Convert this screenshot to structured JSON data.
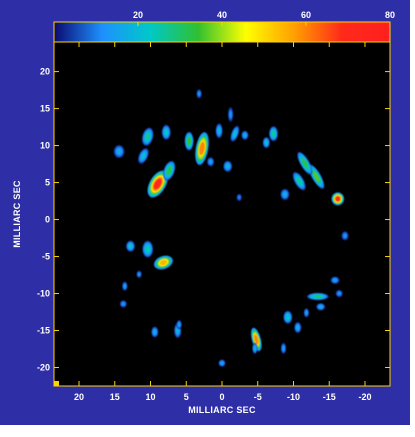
{
  "chart_data": {
    "type": "heatmap",
    "title": "",
    "colorbar": {
      "ticks": [
        20,
        40,
        60,
        80
      ],
      "range": [
        0,
        80
      ],
      "stops": [
        "#0a0a6e",
        "#1e90ff",
        "#00c8c8",
        "#30c030",
        "#ffff00",
        "#ffa000",
        "#ff2a1a",
        "#ff1f1f"
      ]
    },
    "xlabel": "MILLIARC SEC",
    "ylabel": "MILLIARC SEC",
    "x_ticks": [
      20,
      15,
      10,
      5,
      0,
      -5,
      -10,
      -15,
      -20
    ],
    "x_tick_labels": [
      "20",
      "15",
      "10",
      "5",
      "0",
      "-5",
      "-10",
      "-15",
      "-20"
    ],
    "y_ticks": [
      20,
      15,
      10,
      5,
      0,
      -5,
      -10,
      -15,
      -20
    ],
    "y_tick_labels": [
      "20",
      "15",
      "10",
      "5",
      "0",
      "-5",
      "-10",
      "-15",
      "-20"
    ],
    "xlim": [
      23.5,
      -23.5
    ],
    "ylim": [
      -22.5,
      24
    ],
    "grid": false,
    "colors": {
      "frame": "#2e2fa6",
      "plot_bg": "#000000",
      "axis": "#ffd400"
    },
    "spots": [
      {
        "x": 9.0,
        "y": 4.8,
        "peak": 72,
        "sx": 0.9,
        "sy": 1.6,
        "rot": 30
      },
      {
        "x": 7.4,
        "y": 6.6,
        "peak": 32,
        "sx": 0.6,
        "sy": 1.1,
        "rot": 20
      },
      {
        "x": 2.8,
        "y": 9.6,
        "peak": 60,
        "sx": 0.7,
        "sy": 1.8,
        "rot": 10
      },
      {
        "x": 4.6,
        "y": 10.6,
        "peak": 34,
        "sx": 0.5,
        "sy": 1.0,
        "rot": 0
      },
      {
        "x": 10.4,
        "y": 11.2,
        "peak": 26,
        "sx": 0.6,
        "sy": 1.0,
        "rot": 15
      },
      {
        "x": 7.8,
        "y": 11.8,
        "peak": 22,
        "sx": 0.5,
        "sy": 0.8,
        "rot": 0
      },
      {
        "x": 11.0,
        "y": 8.6,
        "peak": 20,
        "sx": 0.5,
        "sy": 0.9,
        "rot": 25
      },
      {
        "x": 8.2,
        "y": -5.8,
        "peak": 55,
        "sx": 1.1,
        "sy": 0.7,
        "rot": -20
      },
      {
        "x": 10.4,
        "y": -4.0,
        "peak": 24,
        "sx": 0.6,
        "sy": 0.9,
        "rot": 0
      },
      {
        "x": 12.8,
        "y": -3.6,
        "peak": 20,
        "sx": 0.5,
        "sy": 0.6,
        "rot": 0
      },
      {
        "x": -16.2,
        "y": 2.8,
        "peak": 70,
        "sx": 0.7,
        "sy": 0.7,
        "rot": 0
      },
      {
        "x": -13.2,
        "y": 5.8,
        "peak": 36,
        "sx": 0.5,
        "sy": 1.5,
        "rot": -30
      },
      {
        "x": -11.6,
        "y": 7.6,
        "peak": 32,
        "sx": 0.5,
        "sy": 1.4,
        "rot": -30
      },
      {
        "x": -10.8,
        "y": 5.2,
        "peak": 26,
        "sx": 0.5,
        "sy": 1.1,
        "rot": -30
      },
      {
        "x": -4.8,
        "y": -16.2,
        "peak": 60,
        "sx": 0.5,
        "sy": 1.3,
        "rot": -15
      },
      {
        "x": -13.4,
        "y": -10.4,
        "peak": 28,
        "sx": 1.2,
        "sy": 0.4,
        "rot": 0
      },
      {
        "x": -9.2,
        "y": -13.2,
        "peak": 22,
        "sx": 0.5,
        "sy": 0.7,
        "rot": 0
      },
      {
        "x": -7.2,
        "y": 11.6,
        "peak": 26,
        "sx": 0.5,
        "sy": 0.8,
        "rot": 0
      },
      {
        "x": -6.2,
        "y": 10.4,
        "peak": 20,
        "sx": 0.4,
        "sy": 0.6,
        "rot": 0
      },
      {
        "x": -1.8,
        "y": 11.6,
        "peak": 20,
        "sx": 0.4,
        "sy": 0.9,
        "rot": 20
      },
      {
        "x": 0.4,
        "y": 12.0,
        "peak": 18,
        "sx": 0.4,
        "sy": 0.8,
        "rot": 0
      },
      {
        "x": -0.8,
        "y": 7.2,
        "peak": 18,
        "sx": 0.5,
        "sy": 0.6,
        "rot": 0
      },
      {
        "x": -8.8,
        "y": 3.4,
        "peak": 16,
        "sx": 0.5,
        "sy": 0.6,
        "rot": 0
      },
      {
        "x": 14.4,
        "y": 9.2,
        "peak": 16,
        "sx": 0.6,
        "sy": 0.7,
        "rot": 0
      },
      {
        "x": 1.6,
        "y": 7.8,
        "peak": 14,
        "sx": 0.4,
        "sy": 0.5,
        "rot": 0
      },
      {
        "x": 13.6,
        "y": -9.0,
        "peak": 14,
        "sx": 0.3,
        "sy": 0.5,
        "rot": 0
      },
      {
        "x": 9.4,
        "y": -15.2,
        "peak": 16,
        "sx": 0.4,
        "sy": 0.6,
        "rot": 0
      },
      {
        "x": 6.2,
        "y": -15.0,
        "peak": 18,
        "sx": 0.4,
        "sy": 0.8,
        "rot": 0
      },
      {
        "x": 0.0,
        "y": -19.4,
        "peak": 14,
        "sx": 0.4,
        "sy": 0.4,
        "rot": 0
      },
      {
        "x": -4.6,
        "y": -17.4,
        "peak": 18,
        "sx": 0.3,
        "sy": 0.6,
        "rot": 0
      },
      {
        "x": -15.8,
        "y": -8.2,
        "peak": 14,
        "sx": 0.5,
        "sy": 0.4,
        "rot": 0
      },
      {
        "x": -13.8,
        "y": -11.8,
        "peak": 16,
        "sx": 0.5,
        "sy": 0.4,
        "rot": 0
      },
      {
        "x": -10.6,
        "y": -14.6,
        "peak": 16,
        "sx": 0.4,
        "sy": 0.6,
        "rot": 0
      },
      {
        "x": -8.6,
        "y": -17.4,
        "peak": 14,
        "sx": 0.3,
        "sy": 0.6,
        "rot": 0
      },
      {
        "x": -17.2,
        "y": -2.2,
        "peak": 12,
        "sx": 0.4,
        "sy": 0.5,
        "rot": 0
      },
      {
        "x": -1.2,
        "y": 14.2,
        "peak": 12,
        "sx": 0.3,
        "sy": 0.8,
        "rot": 0
      },
      {
        "x": 3.2,
        "y": 17.0,
        "peak": 12,
        "sx": 0.3,
        "sy": 0.5,
        "rot": 0
      },
      {
        "x": 13.8,
        "y": -11.4,
        "peak": 12,
        "sx": 0.4,
        "sy": 0.4,
        "rot": 0
      },
      {
        "x": -3.2,
        "y": 11.4,
        "peak": 16,
        "sx": 0.4,
        "sy": 0.5,
        "rot": 0
      },
      {
        "x": 6.0,
        "y": -14.2,
        "peak": 14,
        "sx": 0.3,
        "sy": 0.5,
        "rot": 0
      },
      {
        "x": -16.4,
        "y": -10.0,
        "peak": 12,
        "sx": 0.4,
        "sy": 0.4,
        "rot": 0
      },
      {
        "x": -11.8,
        "y": -12.6,
        "peak": 14,
        "sx": 0.3,
        "sy": 0.5,
        "rot": 0
      },
      {
        "x": 11.6,
        "y": -7.4,
        "peak": 12,
        "sx": 0.3,
        "sy": 0.4,
        "rot": 0
      },
      {
        "x": -2.4,
        "y": 3.0,
        "peak": 10,
        "sx": 0.3,
        "sy": 0.4,
        "rot": 0
      }
    ]
  }
}
